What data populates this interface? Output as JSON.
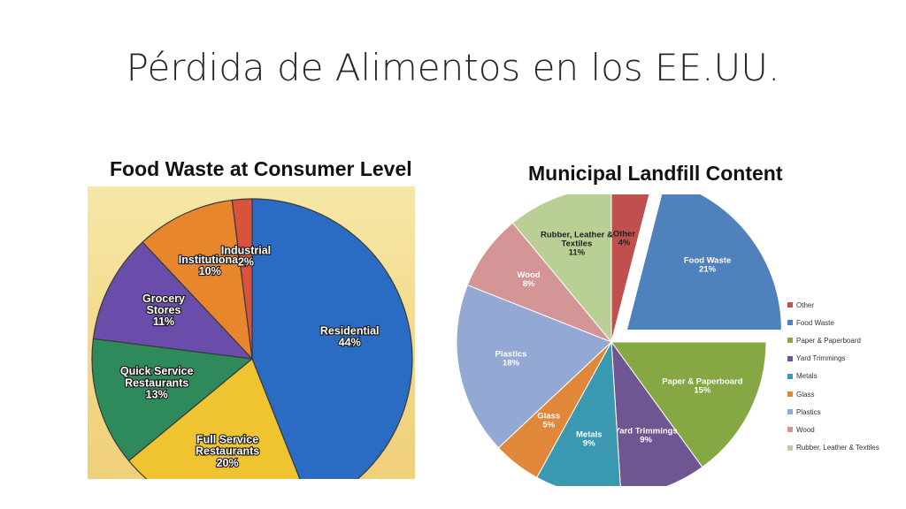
{
  "slide": {
    "title": "Pérdida de Alimentos en los EE.UU."
  },
  "chart_data": [
    {
      "type": "pie",
      "title": "Food Waste at Consumer Level",
      "slices": [
        {
          "name": "Residential",
          "label": "Residential",
          "pct_label": "44%",
          "value": 44,
          "color": "#2a6cc4"
        },
        {
          "name": "Full Service Restaurants",
          "label": "Full Service\nRestaurants",
          "pct_label": "20%",
          "value": 20,
          "color": "#f0c430"
        },
        {
          "name": "Quick Service Restaurants",
          "label": "Quick Service\nRestaurants",
          "pct_label": "13%",
          "value": 13,
          "color": "#2e8a5a"
        },
        {
          "name": "Grocery Stores",
          "label": "Grocery\nStores",
          "pct_label": "11%",
          "value": 11,
          "color": "#6a4cab"
        },
        {
          "name": "Institutional",
          "label": "Institutional",
          "pct_label": "10%",
          "value": 10,
          "color": "#e8862e"
        },
        {
          "name": "Industrial",
          "label": "Industrial",
          "pct_label": "2%",
          "value": 2,
          "color": "#d8523c"
        }
      ]
    },
    {
      "type": "pie",
      "title": "Municipal Landfill Content",
      "legend_position": "right",
      "slices": [
        {
          "name": "Other",
          "label": "Other",
          "pct_label": "4%",
          "value": 4,
          "color": "#c0504d"
        },
        {
          "name": "Food Waste",
          "label": "Food Waste",
          "pct_label": "21%",
          "value": 21,
          "color": "#4f81bd",
          "exploded": true
        },
        {
          "name": "Paper & Paperboard",
          "label": "Paper & Paperboard",
          "pct_label": "15%",
          "value": 15,
          "color": "#86a844"
        },
        {
          "name": "Yard Trimmings",
          "label": "Yard Trimmings",
          "pct_label": "9%",
          "value": 9,
          "color": "#6f5592"
        },
        {
          "name": "Metals",
          "label": "Metals",
          "pct_label": "9%",
          "value": 9,
          "color": "#3a98b0"
        },
        {
          "name": "Glass",
          "label": "Glass",
          "pct_label": "5%",
          "value": 5,
          "color": "#e0873a"
        },
        {
          "name": "Plastics",
          "label": "Plastics",
          "pct_label": "18%",
          "value": 18,
          "color": "#93a9d3"
        },
        {
          "name": "Wood",
          "label": "Wood",
          "pct_label": "8%",
          "value": 8,
          "color": "#d49596"
        },
        {
          "name": "Rubber, Leather & Textiles",
          "label": "Rubber, Leather &\nTextiles",
          "pct_label": "11%",
          "value": 11,
          "color": "#b9cf96"
        }
      ]
    }
  ]
}
